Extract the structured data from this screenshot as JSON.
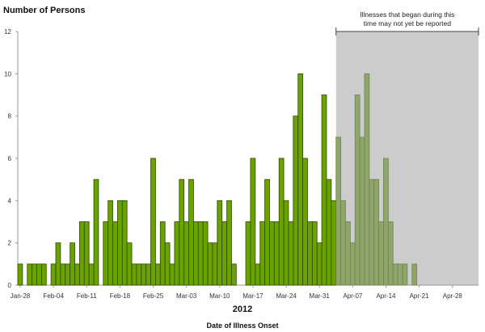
{
  "chart_data": {
    "type": "bar",
    "ylabel": "Number of Persons",
    "xlabel": "Date of Illness Onset",
    "year_label": "2012",
    "ylim": [
      0,
      12
    ],
    "yticks": [
      0,
      2,
      4,
      6,
      8,
      10,
      12
    ],
    "x_start": "2012-01-28",
    "x_end": "2012-05-03",
    "xtick_labels": [
      "Jan-28",
      "Feb-04",
      "Feb-11",
      "Feb-18",
      "Feb-25",
      "Mar-03",
      "Mar-10",
      "Mar-17",
      "Mar-24",
      "Mar-31",
      "Apr-07",
      "Apr-14",
      "Apr-21",
      "Apr-28"
    ],
    "values": [
      1,
      0,
      1,
      1,
      1,
      1,
      0,
      1,
      2,
      1,
      1,
      2,
      1,
      3,
      3,
      1,
      5,
      0,
      3,
      4,
      3,
      4,
      4,
      2,
      1,
      1,
      1,
      1,
      6,
      1,
      3,
      2,
      1,
      3,
      5,
      3,
      5,
      3,
      3,
      3,
      2,
      2,
      4,
      3,
      4,
      1,
      0,
      0,
      3,
      6,
      1,
      3,
      5,
      3,
      3,
      6,
      4,
      3,
      8,
      10,
      6,
      3,
      3,
      2,
      9,
      5,
      4,
      7,
      4,
      3,
      2,
      9,
      7,
      10,
      5,
      5,
      3,
      6,
      3,
      1,
      1,
      1,
      0,
      1
    ],
    "shaded_from": "2012-04-04",
    "annotation": {
      "line1": "Illnesses that began during this",
      "line2": "time may not yet be reported"
    },
    "grid": false,
    "colors": {
      "bar": "#6aa300",
      "bar_edge": "#2e4a00",
      "bar_shaded": "#8fa66a",
      "shade": "#cccccc"
    }
  }
}
